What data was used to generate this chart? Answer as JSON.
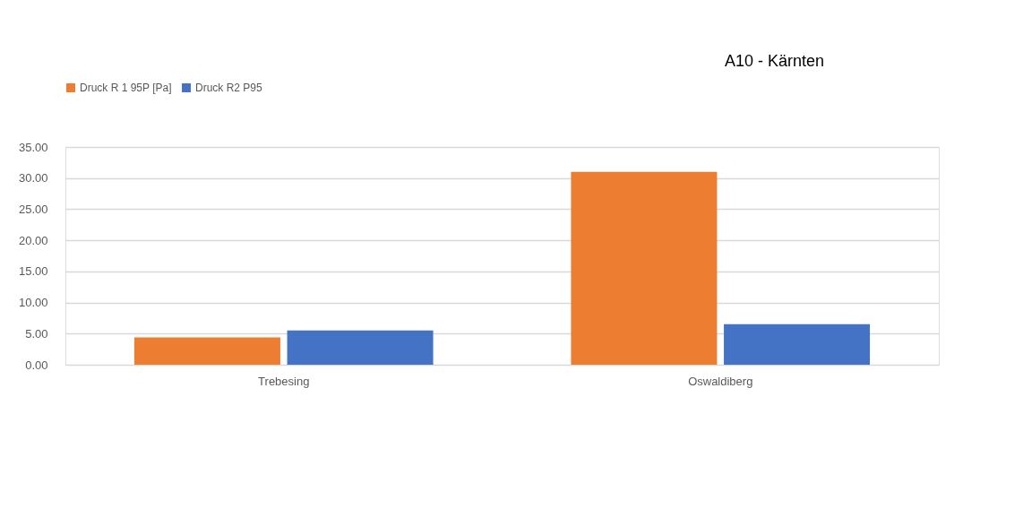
{
  "chart_data": {
    "type": "bar",
    "title": "A10 - Kärnten",
    "categories": [
      "Trebesing",
      "Oswaldiberg"
    ],
    "series": [
      {
        "name": "Druck R 1 95P [Pa]",
        "color": "#ed7d31",
        "values": [
          4.4,
          31.0
        ]
      },
      {
        "name": "Druck R2 P95",
        "color": "#4472c4",
        "values": [
          5.5,
          6.5
        ]
      }
    ],
    "ylim": [
      0,
      35
    ],
    "yticks": [
      {
        "value": 0,
        "label": "0.00"
      },
      {
        "value": 5,
        "label": "5.00"
      },
      {
        "value": 10,
        "label": "10.00"
      },
      {
        "value": 15,
        "label": "15.00"
      },
      {
        "value": 20,
        "label": "20.00"
      },
      {
        "value": 25,
        "label": "25.00"
      },
      {
        "value": 30,
        "label": "30.00"
      },
      {
        "value": 35,
        "label": "35.00"
      }
    ],
    "grid": "y",
    "legend": "top"
  }
}
